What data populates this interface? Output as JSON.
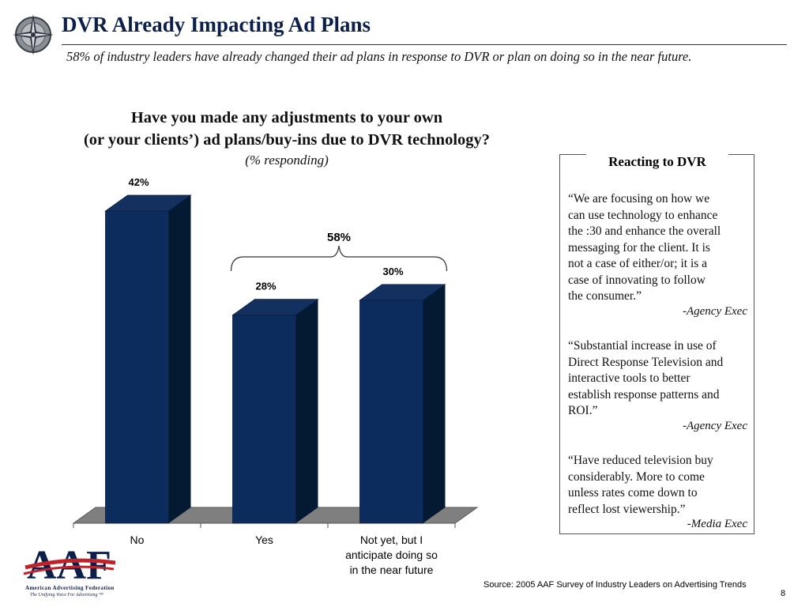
{
  "header": {
    "title": "DVR Already Impacting Ad Plans",
    "subtitle": "58% of  industry leaders have already changed their ad plans in response to DVR or plan on doing so in the near future."
  },
  "chart_data": {
    "type": "bar",
    "title_line1": "Have you made any adjustments to your own",
    "title_line2": "(or your clients’) ad plans/buy-ins due to DVR technology?",
    "subtitle": "(% responding)",
    "categories": [
      "No",
      "Yes",
      "Not yet, but I anticipate doing so in the near future"
    ],
    "category_lines": [
      [
        "No"
      ],
      [
        "Yes"
      ],
      [
        "Not yet, but I",
        "anticipate doing so",
        "in the near future"
      ]
    ],
    "values": [
      42,
      28,
      30
    ],
    "value_labels": [
      "42%",
      "28%",
      "30%"
    ],
    "ylim": [
      0,
      42
    ],
    "bar_color": "#0d2c5e",
    "bracket_label": "58%",
    "grid": false
  },
  "sidebar": {
    "heading": "Reacting to DVR",
    "quotes": [
      {
        "lines": [
          "“We are focusing on how we",
          "can use technology to enhance",
          "the :30 and enhance the overall",
          "messaging for the client. It is",
          "not a case of either/or; it is a",
          "case of innovating to follow",
          "the consumer.”"
        ],
        "attribution": "-Agency Exec"
      },
      {
        "lines": [
          "“Substantial increase in use of",
          "Direct Response Television and",
          "interactive tools to better",
          "establish response patterns and",
          "ROI.”"
        ],
        "attribution": "-Agency Exec"
      },
      {
        "lines": [
          "“Have reduced television buy",
          "considerably. More to come",
          "unless rates come down to",
          "reflect lost viewership.”"
        ],
        "attribution": "-Media Exec"
      }
    ]
  },
  "footer": {
    "source": "Source: 2005 AAF Survey of Industry Leaders on Advertising Trends",
    "page_number": "8",
    "logo_text": "AAF",
    "org_name": "American Advertising Federation",
    "tagline": "The Unifying Voice For Advertising ™"
  },
  "colors": {
    "title": "#0b1f4a",
    "bar_front": "#0d2c5e",
    "bar_top": "#14305f",
    "bar_side": "#041a33",
    "floor": "#7f7f7f",
    "logo_red": "#c0222a",
    "logo_blue": "#0b1f4a"
  }
}
